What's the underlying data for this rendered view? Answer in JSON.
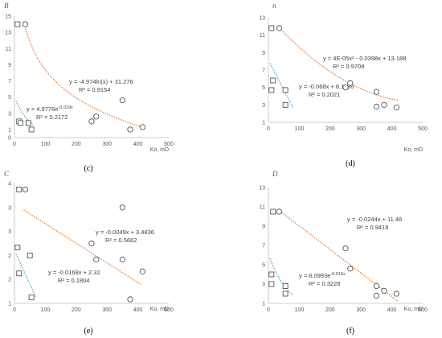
{
  "chart_data": [
    {
      "type": "scatter",
      "title": "B",
      "caption": "(c)",
      "xlabel": "Ko, mD",
      "xlim": [
        0,
        500
      ],
      "ylim": [
        0,
        15
      ],
      "xticks": [
        "0",
        "100",
        "200",
        "300",
        "400",
        "500"
      ],
      "yticks": [
        "0",
        "1",
        "3",
        "5",
        "7",
        "9",
        "11",
        "13",
        "15"
      ],
      "ytick_values": [
        0,
        1,
        3,
        5,
        7,
        9,
        11,
        13,
        15
      ],
      "squares": [
        [
          10,
          14
        ],
        [
          15,
          2
        ],
        [
          20,
          1.8
        ],
        [
          45,
          1.8
        ],
        [
          55,
          1
        ]
      ],
      "circles": [
        [
          35,
          14
        ],
        [
          250,
          2
        ],
        [
          265,
          2.6
        ],
        [
          350,
          4.6
        ],
        [
          375,
          1
        ],
        [
          415,
          1.3
        ]
      ],
      "fits": [
        {
          "kind": "log",
          "a": -4.974,
          "b": 31.276,
          "from": 30,
          "to": 420,
          "color": "#ed7d31",
          "eq": "y = -4.974ln(x) + 31.276",
          "r2": "R² = 0.9154"
        },
        {
          "kind": "exp",
          "a": 4.9776,
          "b": -0.019,
          "from": 5,
          "to": 60,
          "color": "#4bacc6",
          "eq": "y = 4.9776e",
          "eq_sup": "-0.019x",
          "r2": "R² = 0.2172"
        }
      ]
    },
    {
      "type": "scatter",
      "title": "n",
      "caption": "(d)",
      "xlabel": "Ko, mD",
      "xlim": [
        0,
        500
      ],
      "ylim": [
        1,
        13
      ],
      "xticks": [
        "0",
        "100",
        "200",
        "300",
        "400",
        "500"
      ],
      "yticks": [
        "1",
        "3",
        "5",
        "7",
        "9",
        "11",
        "13"
      ],
      "ytick_values": [
        1,
        3,
        5,
        7,
        9,
        11,
        13
      ],
      "squares": [
        [
          10,
          11.8
        ],
        [
          10,
          4.7
        ],
        [
          15,
          5.8
        ],
        [
          55,
          4.7
        ],
        [
          55,
          3
        ]
      ],
      "circles": [
        [
          35,
          11.8
        ],
        [
          250,
          5
        ],
        [
          265,
          5.5
        ],
        [
          350,
          4.5
        ],
        [
          350,
          2.8
        ],
        [
          375,
          3
        ],
        [
          415,
          2.7
        ]
      ],
      "fits": [
        {
          "kind": "poly2",
          "a": 4e-05,
          "b": -0.0398,
          "c": 13.188,
          "from": 30,
          "to": 420,
          "color": "#ed7d31",
          "eq": "y = 4E-05x² - 0.0398x + 13.188",
          "r2": "R² = 0.9708"
        },
        {
          "kind": "linear",
          "a": -0.068,
          "b": 8.1136,
          "from": 5,
          "to": 80,
          "color": "#4bacc6",
          "eq": "y = -0.068x + 8.1136",
          "r2": "R² = 0.2021"
        }
      ]
    },
    {
      "type": "scatter",
      "title": "C",
      "caption": "(e)",
      "xlabel": "Ko, mD",
      "xlim": [
        0,
        500
      ],
      "ylim": [
        1,
        4
      ],
      "xticks": [
        "0",
        "100",
        "200",
        "300",
        "400",
        "500"
      ],
      "yticks": [
        "1",
        "2",
        "2",
        "3",
        "3",
        "4"
      ],
      "ytick_values": [
        1,
        1.6,
        2.2,
        2.8,
        3.4,
        4
      ],
      "squares": [
        [
          10,
          2.4
        ],
        [
          15,
          3.85
        ],
        [
          15,
          1.75
        ],
        [
          50,
          2.2
        ],
        [
          55,
          1.15
        ]
      ],
      "circles": [
        [
          35,
          3.85
        ],
        [
          250,
          2.5
        ],
        [
          265,
          2.1
        ],
        [
          350,
          3.4
        ],
        [
          350,
          2.1
        ],
        [
          375,
          1.1
        ],
        [
          415,
          1.8
        ]
      ],
      "fits": [
        {
          "kind": "linear",
          "a": -0.0049,
          "b": 3.4836,
          "from": 30,
          "to": 410,
          "color": "#ed7d31",
          "eq": "y = -0.0049x + 3.4836",
          "r2": "R² = 0.5662"
        },
        {
          "kind": "linear",
          "a": -0.0168,
          "b": 2.32,
          "from": 5,
          "to": 70,
          "color": "#4bacc6",
          "eq": "y = -0.0168x + 2.32",
          "r2": "R² = 0.1804"
        }
      ]
    },
    {
      "type": "scatter",
      "title": "D",
      "caption": "(f)",
      "xlabel": "Ko, mD",
      "xlim": [
        0,
        500
      ],
      "ylim": [
        1,
        13
      ],
      "xticks": [
        "0",
        "100",
        "200",
        "300",
        "400",
        "500"
      ],
      "yticks": [
        "1",
        "3",
        "5",
        "7",
        "9",
        "11",
        "13"
      ],
      "ytick_values": [
        1,
        3,
        5,
        7,
        9,
        11,
        13
      ],
      "squares": [
        [
          10,
          4
        ],
        [
          10,
          3
        ],
        [
          15,
          10.5
        ],
        [
          55,
          2.8
        ],
        [
          55,
          2
        ]
      ],
      "circles": [
        [
          35,
          10.5
        ],
        [
          250,
          6.7
        ],
        [
          265,
          4.6
        ],
        [
          350,
          2.8
        ],
        [
          350,
          1.8
        ],
        [
          375,
          2.3
        ],
        [
          415,
          2
        ]
      ],
      "fits": [
        {
          "kind": "linear",
          "a": -0.0244,
          "b": 11.46,
          "from": 30,
          "to": 420,
          "color": "#ed7d31",
          "eq": "y = -0.0244x + 11.46",
          "r2": "R² = 0.9419"
        },
        {
          "kind": "exp",
          "a": 6.0993,
          "b": -0.015,
          "from": 5,
          "to": 80,
          "color": "#4bacc6",
          "eq": "y = 6.0993e",
          "eq_sup": "-0.015x",
          "r2": "R² = 0.3228"
        }
      ]
    }
  ]
}
